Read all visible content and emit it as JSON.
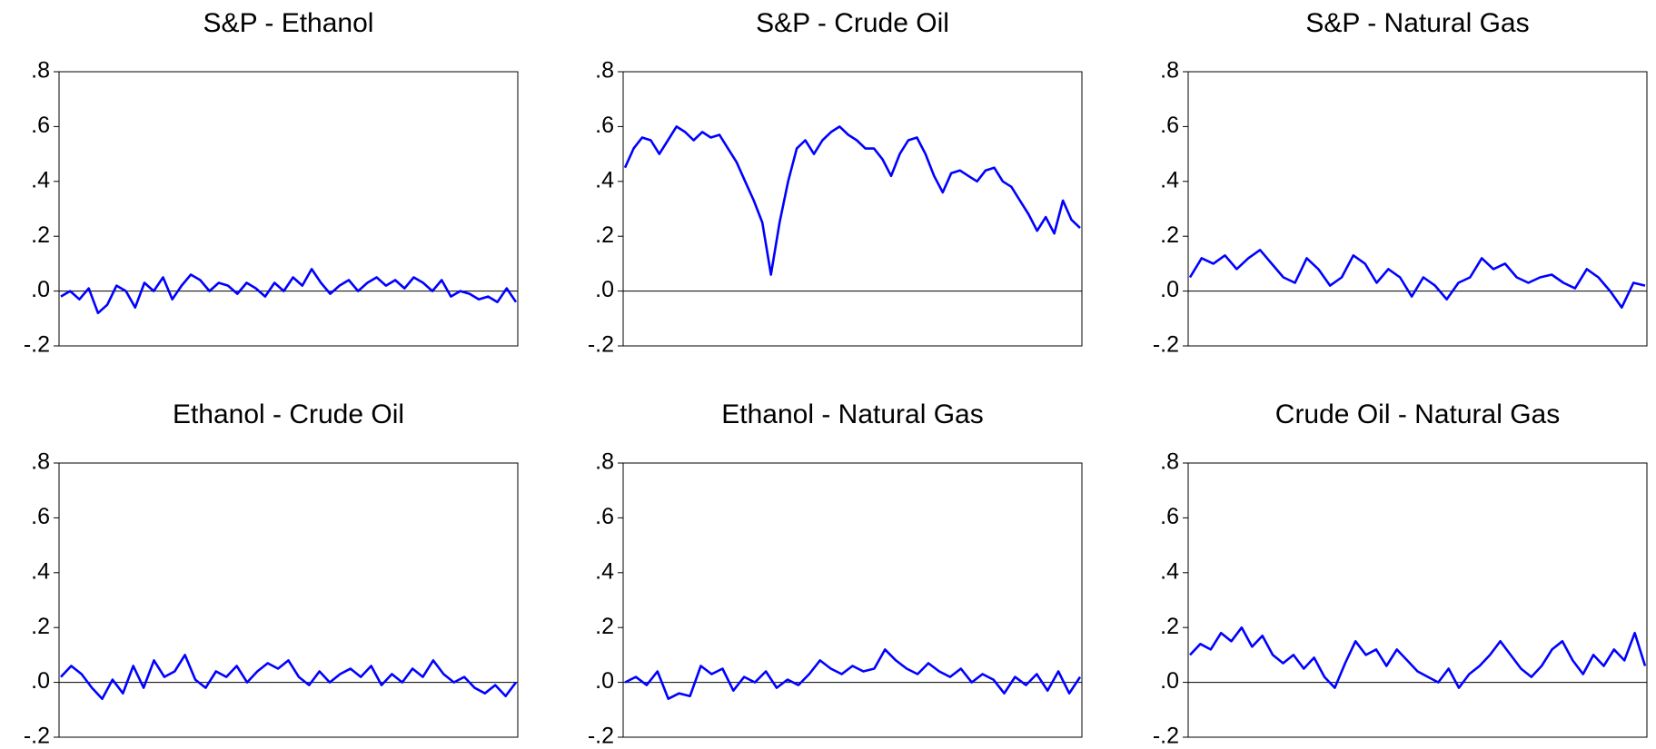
{
  "chart_data": [
    {
      "type": "line",
      "title": "S&P - Ethanol",
      "color": "#0000ff",
      "zero_line": true,
      "ylim": [
        -0.2,
        0.8
      ],
      "yticks": [
        {
          "value": -0.2,
          "label": "-.2"
        },
        {
          "value": 0,
          "label": ".0"
        },
        {
          "value": 0.2,
          "label": ".2"
        },
        {
          "value": 0.4,
          "label": ".4"
        },
        {
          "value": 0.6,
          "label": ".6"
        },
        {
          "value": 0.8,
          "label": ".8"
        }
      ],
      "values": [
        -0.02,
        0.0,
        -0.03,
        0.01,
        -0.08,
        -0.05,
        0.02,
        0.0,
        -0.06,
        0.03,
        0.0,
        0.05,
        -0.03,
        0.02,
        0.06,
        0.04,
        0.0,
        0.03,
        0.02,
        -0.01,
        0.03,
        0.01,
        -0.02,
        0.03,
        0.0,
        0.05,
        0.02,
        0.08,
        0.03,
        -0.01,
        0.02,
        0.04,
        0.0,
        0.03,
        0.05,
        0.02,
        0.04,
        0.01,
        0.05,
        0.03,
        0.0,
        0.04,
        -0.02,
        0.0,
        -0.01,
        -0.03,
        -0.02,
        -0.04,
        0.01,
        -0.04
      ]
    },
    {
      "type": "line",
      "title": "S&P - Crude Oil",
      "color": "#0000ff",
      "zero_line": true,
      "ylim": [
        -0.2,
        0.8
      ],
      "yticks": [
        {
          "value": -0.2,
          "label": "-.2"
        },
        {
          "value": 0,
          "label": ".0"
        },
        {
          "value": 0.2,
          "label": ".2"
        },
        {
          "value": 0.4,
          "label": ".4"
        },
        {
          "value": 0.6,
          "label": ".6"
        },
        {
          "value": 0.8,
          "label": ".8"
        }
      ],
      "values": [
        0.45,
        0.52,
        0.56,
        0.55,
        0.5,
        0.55,
        0.6,
        0.58,
        0.55,
        0.58,
        0.56,
        0.57,
        0.52,
        0.47,
        0.4,
        0.33,
        0.25,
        0.06,
        0.25,
        0.4,
        0.52,
        0.55,
        0.5,
        0.55,
        0.58,
        0.6,
        0.57,
        0.55,
        0.52,
        0.52,
        0.48,
        0.42,
        0.5,
        0.55,
        0.56,
        0.5,
        0.42,
        0.36,
        0.43,
        0.44,
        0.42,
        0.4,
        0.44,
        0.45,
        0.4,
        0.38,
        0.33,
        0.28,
        0.22,
        0.27,
        0.21,
        0.33,
        0.26,
        0.23
      ]
    },
    {
      "type": "line",
      "title": "S&P - Natural Gas",
      "color": "#0000ff",
      "zero_line": true,
      "ylim": [
        -0.2,
        0.8
      ],
      "yticks": [
        {
          "value": -0.2,
          "label": "-.2"
        },
        {
          "value": 0,
          "label": ".0"
        },
        {
          "value": 0.2,
          "label": ".2"
        },
        {
          "value": 0.4,
          "label": ".4"
        },
        {
          "value": 0.6,
          "label": ".6"
        },
        {
          "value": 0.8,
          "label": ".8"
        }
      ],
      "values": [
        0.05,
        0.12,
        0.1,
        0.13,
        0.08,
        0.12,
        0.15,
        0.1,
        0.05,
        0.03,
        0.12,
        0.08,
        0.02,
        0.05,
        0.13,
        0.1,
        0.03,
        0.08,
        0.05,
        -0.02,
        0.05,
        0.02,
        -0.03,
        0.03,
        0.05,
        0.12,
        0.08,
        0.1,
        0.05,
        0.03,
        0.05,
        0.06,
        0.03,
        0.01,
        0.08,
        0.05,
        0.0,
        -0.06,
        0.03,
        0.02
      ]
    },
    {
      "type": "line",
      "title": "Ethanol - Crude Oil",
      "color": "#0000ff",
      "zero_line": true,
      "ylim": [
        -0.2,
        0.8
      ],
      "yticks": [
        {
          "value": -0.2,
          "label": "-.2"
        },
        {
          "value": 0,
          "label": ".0"
        },
        {
          "value": 0.2,
          "label": ".2"
        },
        {
          "value": 0.4,
          "label": ".4"
        },
        {
          "value": 0.6,
          "label": ".6"
        },
        {
          "value": 0.8,
          "label": ".8"
        }
      ],
      "values": [
        0.02,
        0.06,
        0.03,
        -0.02,
        -0.06,
        0.01,
        -0.04,
        0.06,
        -0.02,
        0.08,
        0.02,
        0.04,
        0.1,
        0.01,
        -0.02,
        0.04,
        0.02,
        0.06,
        0.0,
        0.04,
        0.07,
        0.05,
        0.08,
        0.02,
        -0.01,
        0.04,
        0.0,
        0.03,
        0.05,
        0.02,
        0.06,
        -0.01,
        0.03,
        0.0,
        0.05,
        0.02,
        0.08,
        0.03,
        0.0,
        0.02,
        -0.02,
        -0.04,
        -0.01,
        -0.05,
        0.0
      ]
    },
    {
      "type": "line",
      "title": "Ethanol - Natural Gas",
      "color": "#0000ff",
      "zero_line": true,
      "ylim": [
        -0.2,
        0.8
      ],
      "yticks": [
        {
          "value": -0.2,
          "label": "-.2"
        },
        {
          "value": 0,
          "label": ".0"
        },
        {
          "value": 0.2,
          "label": ".2"
        },
        {
          "value": 0.4,
          "label": ".4"
        },
        {
          "value": 0.6,
          "label": ".6"
        },
        {
          "value": 0.8,
          "label": ".8"
        }
      ],
      "values": [
        0.0,
        0.02,
        -0.01,
        0.04,
        -0.06,
        -0.04,
        -0.05,
        0.06,
        0.03,
        0.05,
        -0.03,
        0.02,
        0.0,
        0.04,
        -0.02,
        0.01,
        -0.01,
        0.03,
        0.08,
        0.05,
        0.03,
        0.06,
        0.04,
        0.05,
        0.12,
        0.08,
        0.05,
        0.03,
        0.07,
        0.04,
        0.02,
        0.05,
        0.0,
        0.03,
        0.01,
        -0.04,
        0.02,
        -0.01,
        0.03,
        -0.03,
        0.04,
        -0.04,
        0.02
      ]
    },
    {
      "type": "line",
      "title": "Crude Oil - Natural Gas",
      "color": "#0000ff",
      "zero_line": true,
      "ylim": [
        -0.2,
        0.8
      ],
      "yticks": [
        {
          "value": -0.2,
          "label": "-.2"
        },
        {
          "value": 0,
          "label": ".0"
        },
        {
          "value": 0.2,
          "label": ".2"
        },
        {
          "value": 0.4,
          "label": ".4"
        },
        {
          "value": 0.6,
          "label": ".6"
        },
        {
          "value": 0.8,
          "label": ".8"
        }
      ],
      "values": [
        0.1,
        0.14,
        0.12,
        0.18,
        0.15,
        0.2,
        0.13,
        0.17,
        0.1,
        0.07,
        0.1,
        0.05,
        0.09,
        0.02,
        -0.02,
        0.07,
        0.15,
        0.1,
        0.12,
        0.06,
        0.12,
        0.08,
        0.04,
        0.02,
        0.0,
        0.05,
        -0.02,
        0.03,
        0.06,
        0.1,
        0.15,
        0.1,
        0.05,
        0.02,
        0.06,
        0.12,
        0.15,
        0.08,
        0.03,
        0.1,
        0.06,
        0.12,
        0.08,
        0.18,
        0.06
      ]
    }
  ]
}
